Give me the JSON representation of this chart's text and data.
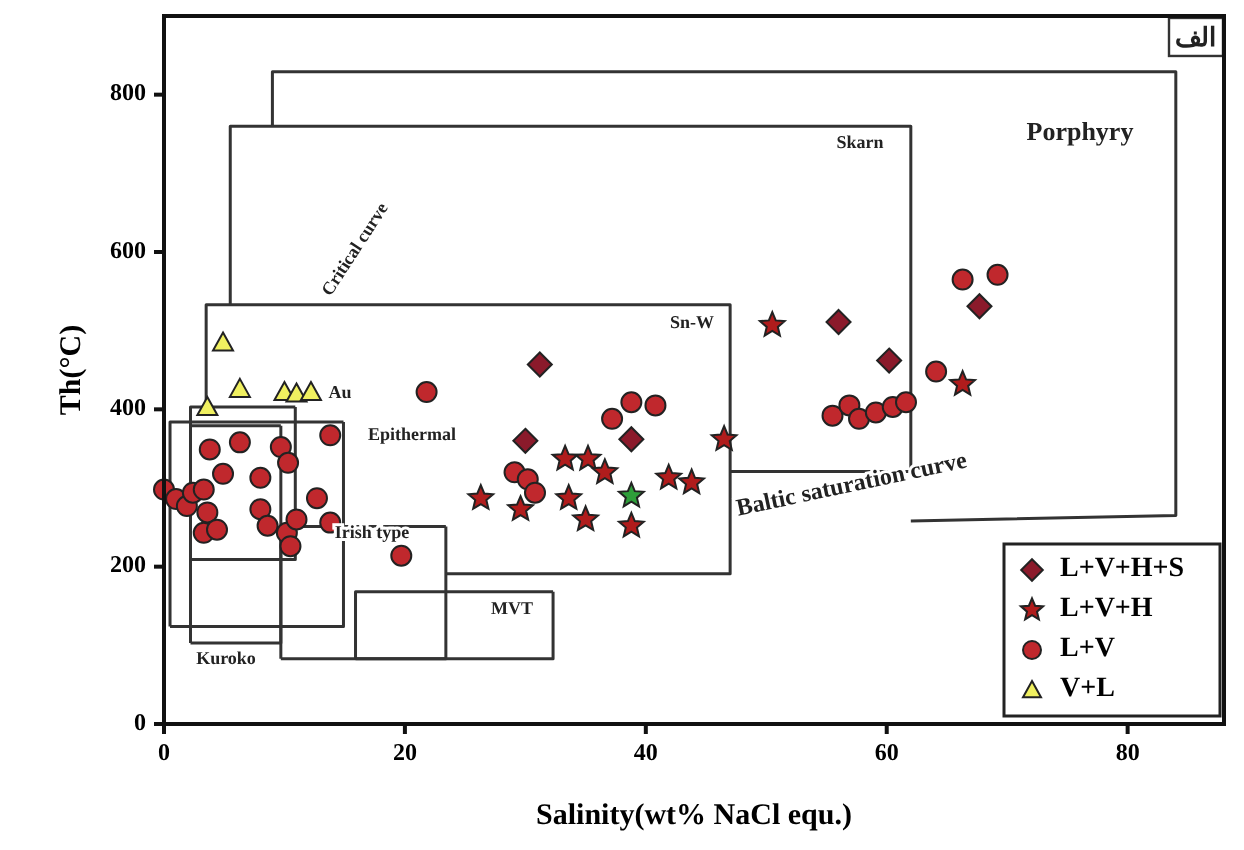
{
  "chart_data": {
    "type": "scatter",
    "xlabel": "Salinity(wt% NaCl equ.)",
    "ylabel": "Th(°C)",
    "xlim": [
      0,
      88
    ],
    "ylim": [
      0,
      900
    ],
    "xticks": [
      0,
      20,
      40,
      60,
      80
    ],
    "yticks": [
      0,
      200,
      400,
      600,
      800
    ],
    "grid": false,
    "legend": "bottom right",
    "series": [
      {
        "type": "line",
        "color": "#333333",
        "x": [
          9,
          9,
          84,
          84,
          62
        ],
        "values": [
          760,
          829,
          829,
          265,
          258
        ]
      },
      {
        "type": "line",
        "color": "#333333",
        "x": [
          5.5,
          5.5,
          62,
          62,
          47
        ],
        "values": [
          533,
          760,
          760,
          321,
          321
        ]
      },
      {
        "type": "line",
        "color": "#333333",
        "x": [
          3.5,
          3.5,
          47,
          47,
          23.4
        ],
        "values": [
          403,
          533,
          533,
          191,
          191
        ]
      },
      {
        "type": "line",
        "color": "#333333",
        "x": [
          0.5,
          0.5,
          14.9
        ],
        "values": [
          124,
          384,
          384
        ]
      },
      {
        "type": "line",
        "color": "#333333",
        "x": [
          14.9,
          14.9,
          0.5
        ],
        "values": [
          384,
          124,
          124
        ]
      },
      {
        "type": "line",
        "color": "#333333",
        "x": [
          2.2,
          2.2,
          9.7
        ],
        "values": [
          103,
          379,
          379
        ]
      },
      {
        "type": "line",
        "color": "#333333",
        "x": [
          9.7,
          9.7,
          2.2
        ],
        "values": [
          379,
          103,
          103
        ]
      },
      {
        "type": "line",
        "color": "#333333",
        "x": [
          2.2,
          2.2,
          10.9
        ],
        "values": [
          209,
          403,
          403
        ]
      },
      {
        "type": "line",
        "color": "#333333",
        "x": [
          10.9,
          10.9,
          2.2
        ],
        "values": [
          403,
          209,
          209
        ]
      },
      {
        "type": "line",
        "color": "#333333",
        "x": [
          9.7,
          9.7,
          23.4
        ],
        "values": [
          83,
          251,
          251
        ]
      },
      {
        "type": "line",
        "color": "#333333",
        "x": [
          23.4,
          23.4,
          9.7
        ],
        "values": [
          251,
          83,
          83
        ]
      },
      {
        "type": "line",
        "color": "#333333",
        "x": [
          15.9,
          15.9,
          32.3
        ],
        "values": [
          83,
          168,
          168
        ]
      },
      {
        "type": "line",
        "color": "#333333",
        "x": [
          32.3,
          32.3,
          15.9
        ],
        "values": [
          168,
          83,
          83
        ]
      },
      {
        "name": "L+V+H+S",
        "marker": "diamond",
        "color": "#8b1a2b",
        "x": [
          31.2,
          30,
          38.8,
          56,
          60.2,
          67.7
        ],
        "values": [
          457,
          360,
          362,
          511,
          462,
          531
        ]
      },
      {
        "name": "L+V+H",
        "marker": "star",
        "color": "#b01c1c",
        "colors": [
          "#b01c1c",
          "#b01c1c",
          "#b01c1c",
          "#b01c1c",
          "#b01c1c",
          "#b01c1c",
          "#b01c1c",
          "#b01c1c",
          "#2e9e3a",
          "#b01c1c",
          "#b01c1c",
          "#b01c1c",
          "#b01c1c",
          "#b01c1c"
        ],
        "x": [
          26.3,
          29.6,
          33.3,
          35.2,
          36.6,
          33.6,
          35,
          38.8,
          38.8,
          41.9,
          43.8,
          46.5,
          50.5,
          66.3
        ],
        "values": [
          287,
          273,
          337,
          337,
          320,
          287,
          260,
          252,
          290,
          313,
          307,
          362,
          507,
          432
        ]
      },
      {
        "name": "L+V",
        "marker": "circle",
        "color": "#c0282d",
        "x": [
          0,
          1,
          1.9,
          2.4,
          3.3,
          3.6,
          3.3,
          4.4,
          3.8,
          6.3,
          4.9,
          8,
          9.7,
          10.3,
          8,
          8.6,
          10.2,
          11,
          10.5,
          12.7,
          13.8,
          13.8,
          19.7,
          21.8,
          29.1,
          30.2,
          30.8,
          37.2,
          38.8,
          40.8,
          55.5,
          56.9,
          57.7,
          59.1,
          60.5,
          61.6,
          66.3,
          69.2,
          64.1
        ],
        "values": [
          298,
          286,
          277,
          294,
          298,
          269,
          243,
          247,
          349,
          358,
          318,
          313,
          352,
          332,
          273,
          252,
          243,
          260,
          226,
          287,
          256,
          367,
          214,
          422,
          320,
          311,
          294,
          388,
          409,
          405,
          392,
          405,
          388,
          396,
          403,
          409,
          565,
          571,
          448
        ]
      },
      {
        "name": "V+L",
        "marker": "triangle",
        "color": "#f0f060",
        "x": [
          4.9,
          6.3,
          3.6,
          10,
          11,
          12.2
        ],
        "values": [
          485,
          426,
          403,
          422,
          420,
          422
        ]
      }
    ],
    "annotations": [
      "Porphyry",
      "Skarn",
      "Sn-W",
      "Au",
      "Epithermal",
      "Irish type",
      "MVT",
      "Kuroko",
      "Critical curve",
      "Baltic saturation curve",
      "الف"
    ]
  }
}
